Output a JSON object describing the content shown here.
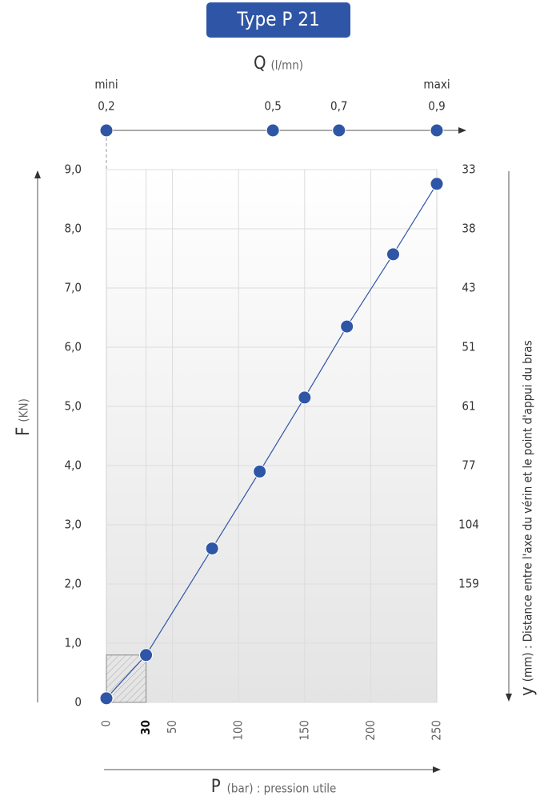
{
  "chart_data": {
    "type": "line",
    "title": "Type P 21",
    "x_label": "P",
    "x_unit": "(bar) : pression utile",
    "y_label": "F",
    "y_unit": "(KN)",
    "y2_label": "y",
    "y2_unit": "(mm) : Distance entre l'axe du vérin et le point d'appui du bras",
    "q_label": "Q",
    "q_unit": "(l/mn)",
    "q_min_label": "mini",
    "q_max_label": "maxi",
    "x": [
      0,
      30,
      80,
      116,
      150,
      182,
      217,
      250
    ],
    "series": [
      {
        "name": "F",
        "color": "#2f56a6",
        "values": [
          0.07,
          0.8,
          2.6,
          3.9,
          5.15,
          6.35,
          7.57,
          8.76
        ]
      }
    ],
    "xlim": [
      0,
      250
    ],
    "ylim": [
      0,
      9
    ],
    "xticks": [
      0,
      30,
      50,
      100,
      150,
      200,
      250
    ],
    "yticks": [
      0,
      {
        "value": 1,
        "label": "1,0"
      },
      {
        "value": 2,
        "label": "2,0"
      },
      {
        "value": 3,
        "label": "3,0"
      },
      {
        "value": 4,
        "label": "4,0"
      },
      {
        "value": 5,
        "label": "5,0"
      },
      {
        "value": 6,
        "label": "6,0"
      },
      {
        "value": 7,
        "label": "7,0"
      },
      {
        "value": 8,
        "label": "8,0"
      },
      {
        "value": 9,
        "label": "9,0"
      }
    ],
    "y2ticks": [
      {
        "value": 33,
        "f": 9
      },
      {
        "value": 38,
        "f": 8
      },
      {
        "value": 43,
        "f": 7
      },
      {
        "value": 51,
        "f": 6
      },
      {
        "value": 61,
        "f": 5
      },
      {
        "value": 77,
        "f": 4
      },
      {
        "value": 104,
        "f": 3
      },
      {
        "value": 159,
        "f": 2
      }
    ],
    "qticks": [
      {
        "value": 0.2,
        "label": "0,2",
        "p": 0
      },
      {
        "value": 0.5,
        "label": "0,5",
        "p": 126
      },
      {
        "value": 0.7,
        "label": "0,7",
        "p": 176
      },
      {
        "value": 0.9,
        "label": "0,9",
        "p": 250
      }
    ],
    "grid": true
  }
}
